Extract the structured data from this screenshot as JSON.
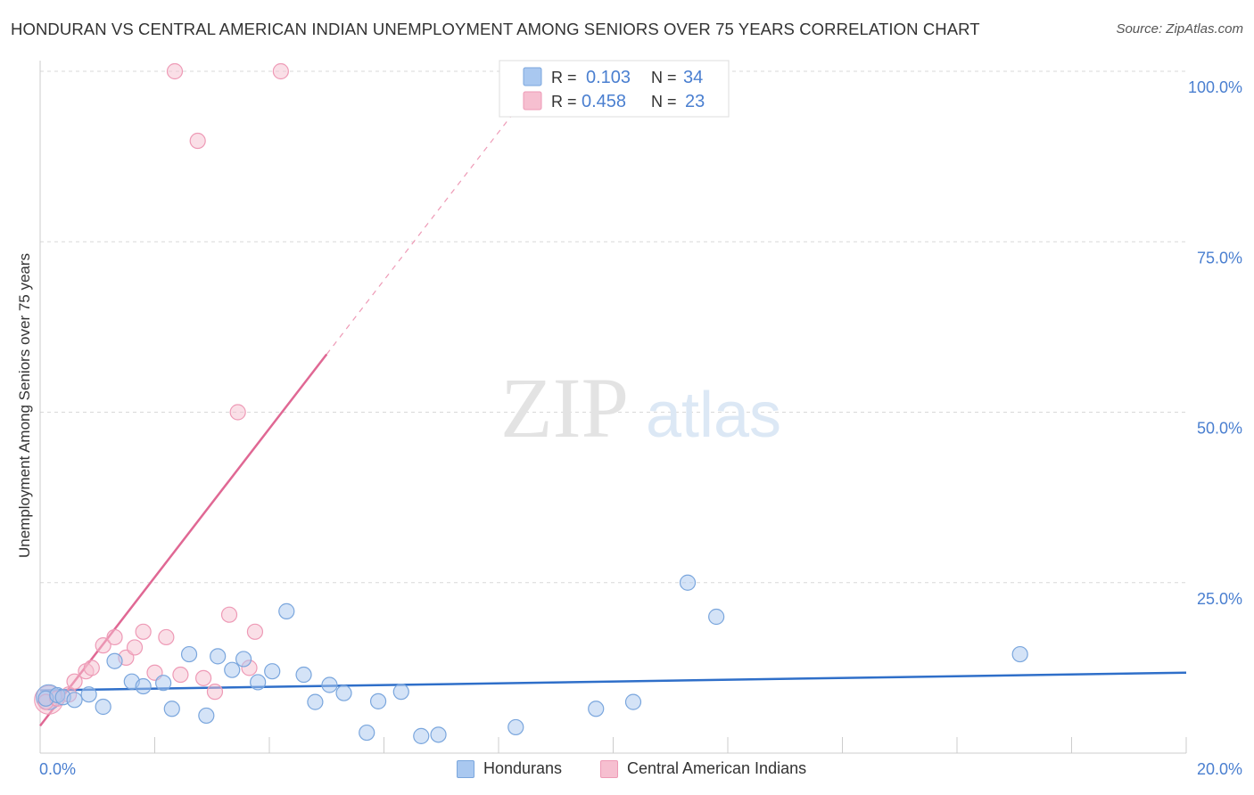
{
  "title": "HONDURAN VS CENTRAL AMERICAN INDIAN UNEMPLOYMENT AMONG SENIORS OVER 75 YEARS CORRELATION CHART",
  "source": "Source: ZipAtlas.com",
  "watermark": {
    "zip": "ZIP",
    "atlas": "atlas"
  },
  "legend": {
    "r_label": "R =",
    "n_label": "N =",
    "rows": [
      {
        "r": "0.103",
        "n": "34"
      },
      {
        "r": "0.458",
        "n": "23"
      }
    ]
  },
  "bottom_legend": [
    "Hondurans",
    "Central American Indians"
  ],
  "colors": {
    "hondurans_fill": "#a9c8f0",
    "hondurans_stroke": "#7aa6dd",
    "hondurans_line": "#2f6fc9",
    "cai_fill": "#f6bfd0",
    "cai_stroke": "#ee9ab6",
    "cai_line": "#e06894",
    "tick_text": "#4a7fd0",
    "grid": "#d9d9d9"
  },
  "chart_data": {
    "type": "scatter",
    "title": "HONDURAN VS CENTRAL AMERICAN INDIAN UNEMPLOYMENT AMONG SENIORS OVER 75 YEARS CORRELATION CHART",
    "xlabel": "",
    "ylabel": "Unemployment Among Seniors over 75 years",
    "xlim": [
      0,
      20
    ],
    "ylim": [
      0,
      100
    ],
    "x_tick_labels": [
      "0.0%",
      "20.0%"
    ],
    "y_tick_labels": [
      "100.0%",
      "75.0%",
      "50.0%",
      "25.0%"
    ],
    "y_tick_values": [
      100,
      75,
      50,
      25
    ],
    "series": [
      {
        "name": "Hondurans",
        "r": 0.103,
        "n": 34,
        "points": [
          [
            0.1,
            8.0
          ],
          [
            0.3,
            8.5
          ],
          [
            0.4,
            8.2
          ],
          [
            0.6,
            7.8
          ],
          [
            0.85,
            8.6
          ],
          [
            1.1,
            6.8
          ],
          [
            1.3,
            13.5
          ],
          [
            1.6,
            10.5
          ],
          [
            1.8,
            9.8
          ],
          [
            2.15,
            10.3
          ],
          [
            2.3,
            6.5
          ],
          [
            2.6,
            14.5
          ],
          [
            2.9,
            5.5
          ],
          [
            3.1,
            14.2
          ],
          [
            3.35,
            12.2
          ],
          [
            3.55,
            13.8
          ],
          [
            3.8,
            10.4
          ],
          [
            4.05,
            12.0
          ],
          [
            4.3,
            20.8
          ],
          [
            4.6,
            11.5
          ],
          [
            4.8,
            7.5
          ],
          [
            5.05,
            10.0
          ],
          [
            5.3,
            8.8
          ],
          [
            5.7,
            3.0
          ],
          [
            5.9,
            7.6
          ],
          [
            6.3,
            9.0
          ],
          [
            6.65,
            2.5
          ],
          [
            6.95,
            2.7
          ],
          [
            8.3,
            3.8
          ],
          [
            9.7,
            6.5
          ],
          [
            10.35,
            7.5
          ],
          [
            11.3,
            25.0
          ],
          [
            11.8,
            20.0
          ],
          [
            17.1,
            14.5
          ]
        ],
        "trend": {
          "x0": 0,
          "y0": 9.2,
          "x1": 20,
          "y1": 11.8
        }
      },
      {
        "name": "Central American Indians",
        "r": 0.458,
        "n": 23,
        "points": [
          [
            0.1,
            7.5
          ],
          [
            0.3,
            8.0
          ],
          [
            0.5,
            8.6
          ],
          [
            0.6,
            10.5
          ],
          [
            0.8,
            12.0
          ],
          [
            0.9,
            12.5
          ],
          [
            1.1,
            15.8
          ],
          [
            1.3,
            17.0
          ],
          [
            1.5,
            14.0
          ],
          [
            1.65,
            15.5
          ],
          [
            1.8,
            17.8
          ],
          [
            2.0,
            11.8
          ],
          [
            2.2,
            17.0
          ],
          [
            2.35,
            100.0
          ],
          [
            2.45,
            11.5
          ],
          [
            2.75,
            89.8
          ],
          [
            2.85,
            11.0
          ],
          [
            3.05,
            9.0
          ],
          [
            3.3,
            20.3
          ],
          [
            3.45,
            50.0
          ],
          [
            3.65,
            12.5
          ],
          [
            3.75,
            17.8
          ],
          [
            4.2,
            100.0
          ]
        ],
        "trend_solid": {
          "x0": 0,
          "y0": 4.0,
          "x1": 5.0,
          "y1": 58.5
        },
        "trend_dashed": {
          "x0": 5.0,
          "y0": 58.5,
          "x1": 8.5,
          "y1": 96.5
        }
      }
    ]
  }
}
